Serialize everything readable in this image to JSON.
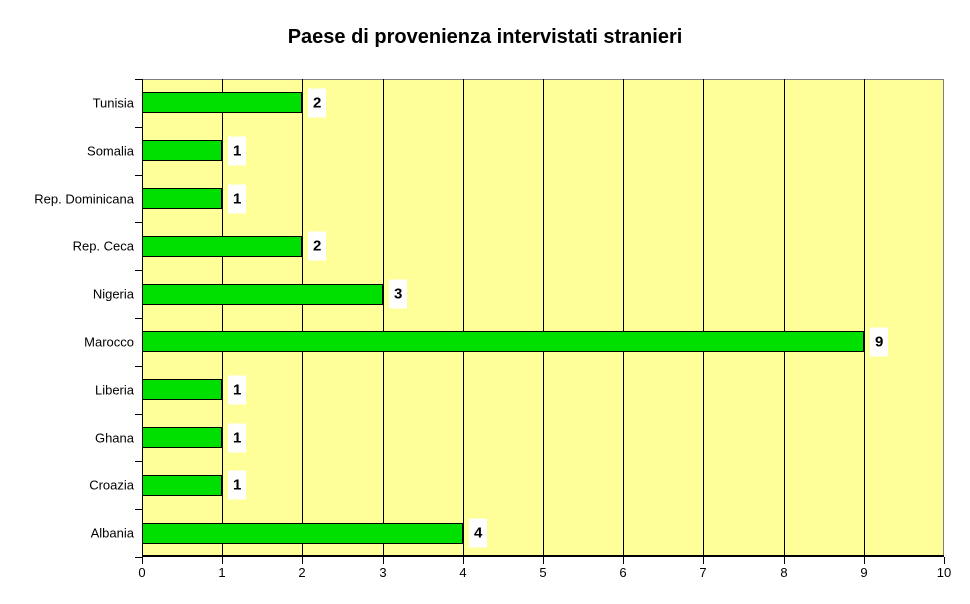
{
  "chart_data": {
    "type": "bar",
    "orientation": "horizontal",
    "title": "Paese di provenienza intervistati stranieri",
    "categories": [
      "Tunisia",
      "Somalia",
      "Rep. Dominicana",
      "Rep. Ceca",
      "Nigeria",
      "Marocco",
      "Liberia",
      "Ghana",
      "Croazia",
      "Albania"
    ],
    "values": [
      2,
      1,
      1,
      2,
      3,
      9,
      1,
      1,
      1,
      4
    ],
    "value_labels": [
      "2",
      "1",
      "1",
      "2",
      "3",
      "9",
      "1",
      "1",
      "1",
      "4"
    ],
    "xlabel": "",
    "ylabel": "",
    "xlim": [
      0,
      10
    ],
    "x_ticks": [
      0,
      1,
      2,
      3,
      4,
      5,
      6,
      7,
      8,
      9,
      10
    ],
    "grid": "vertical-major",
    "legend": "none",
    "colors": {
      "bar_fill": "#00E000",
      "bar_border": "#000000",
      "plot_background": "#FFFF99",
      "plot_border": "#808080",
      "gridline": "#000000",
      "axis": "#000000",
      "text": "#000000",
      "value_label_background": "#FFFFFF",
      "page_background": "#FFFFFF"
    }
  }
}
